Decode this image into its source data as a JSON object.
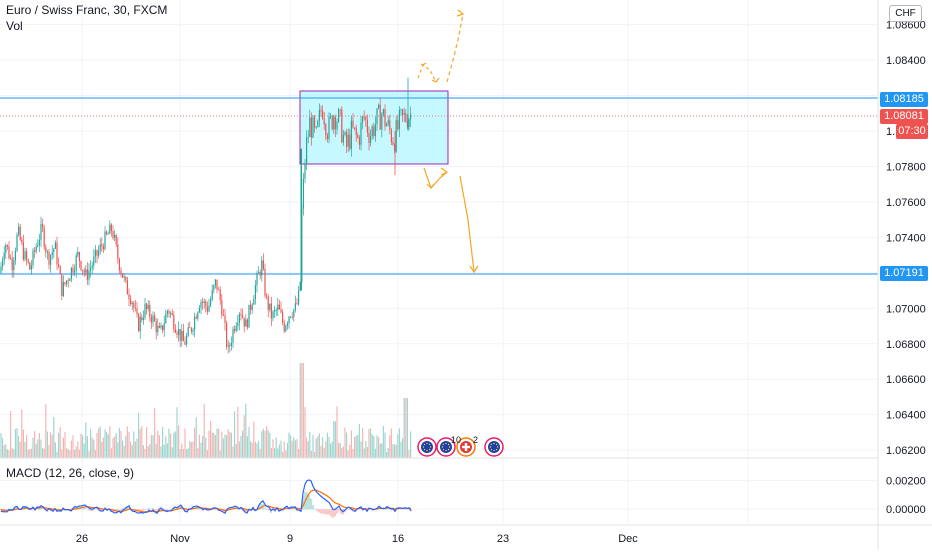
{
  "header": {
    "symbol_title": "Euro / Swiss Franc, 30, FXCM",
    "volume_label": "Vol",
    "currency_button": "CHF"
  },
  "macd": {
    "label": "MACD (12, 26, close, 9)"
  },
  "price_scale": {
    "ticks": [
      "1.08600",
      "1.08400",
      "1.07800",
      "1.07600",
      "1.07400",
      "1.07000",
      "1.06800",
      "1.06600",
      "1.06400",
      "1.06200"
    ],
    "partial_tick": "1."
  },
  "macd_scale": {
    "ticks": [
      "0.00200",
      "0.00000"
    ]
  },
  "time_axis": {
    "ticks": [
      "26",
      "Nov",
      "9",
      "16",
      "23",
      "Dec"
    ]
  },
  "badges": {
    "resistance": "1.08185",
    "last_price": "1.08081",
    "countdown": "07:30",
    "support": "1.07191"
  },
  "events": {
    "count_a": "10",
    "count_b": "2"
  },
  "colors": {
    "up": "#26a69a",
    "down": "#ef5350",
    "hline": "#2196f3",
    "box_fill": "#b2f5ff",
    "box_border": "#9c27b0",
    "projection": "#f5a623",
    "macd_line": "#2962ff",
    "signal_line": "#ff6d00"
  },
  "chart_data": {
    "type": "candlestick",
    "title": "Euro / Swiss Franc, 30, FXCM",
    "y_range": [
      1.0615,
      1.0875
    ],
    "x_ticks": [
      "26",
      "Nov",
      "9",
      "16",
      "23",
      "Dec"
    ],
    "horizontal_levels": [
      1.08185,
      1.07191
    ],
    "last_price": 1.08081,
    "range_box": {
      "top": 1.08185,
      "bottom": 1.0782
    },
    "price_path": [
      [
        0,
        1.072
      ],
      [
        5,
        1.0738
      ],
      [
        12,
        1.0725
      ],
      [
        18,
        1.0743
      ],
      [
        24,
        1.073
      ],
      [
        30,
        1.0722
      ],
      [
        36,
        1.0735
      ],
      [
        42,
        1.0745
      ],
      [
        48,
        1.0728
      ],
      [
        55,
        1.0735
      ],
      [
        62,
        1.071
      ],
      [
        70,
        1.072
      ],
      [
        78,
        1.073
      ],
      [
        86,
        1.0718
      ],
      [
        95,
        1.0728
      ],
      [
        104,
        1.0738
      ],
      [
        112,
        1.0745
      ],
      [
        118,
        1.0728
      ],
      [
        126,
        1.0712
      ],
      [
        132,
        1.0705
      ],
      [
        138,
        1.069
      ],
      [
        145,
        1.07
      ],
      [
        152,
        1.0695
      ],
      [
        160,
        1.0685
      ],
      [
        168,
        1.07
      ],
      [
        176,
        1.069
      ],
      [
        184,
        1.068
      ],
      [
        192,
        1.069
      ],
      [
        200,
        1.0705
      ],
      [
        208,
        1.07
      ],
      [
        216,
        1.0715
      ],
      [
        222,
        1.07
      ],
      [
        228,
        1.0675
      ],
      [
        234,
        1.069
      ],
      [
        240,
        1.07
      ],
      [
        246,
        1.069
      ],
      [
        252,
        1.0705
      ],
      [
        258,
        1.0718
      ],
      [
        262,
        1.0725
      ],
      [
        266,
        1.0705
      ],
      [
        272,
        1.0695
      ],
      [
        278,
        1.07
      ],
      [
        284,
        1.069
      ],
      [
        290,
        1.0698
      ],
      [
        296,
        1.07
      ],
      [
        300,
        1.071
      ],
      [
        302,
        1.076
      ],
      [
        306,
        1.079
      ],
      [
        310,
        1.0805
      ],
      [
        316,
        1.0795
      ],
      [
        322,
        1.0815
      ],
      [
        328,
        1.08
      ],
      [
        334,
        1.081
      ],
      [
        340,
        1.0805
      ],
      [
        346,
        1.079
      ],
      [
        352,
        1.08
      ],
      [
        358,
        1.0795
      ],
      [
        364,
        1.0808
      ],
      [
        370,
        1.0798
      ],
      [
        376,
        1.0805
      ],
      [
        382,
        1.081
      ],
      [
        388,
        1.0802
      ],
      [
        394,
        1.0795
      ],
      [
        400,
        1.0805
      ],
      [
        406,
        1.0808
      ],
      [
        412,
        1.081
      ]
    ],
    "macd_range": [
      -0.0009,
      0.0033
    ]
  }
}
